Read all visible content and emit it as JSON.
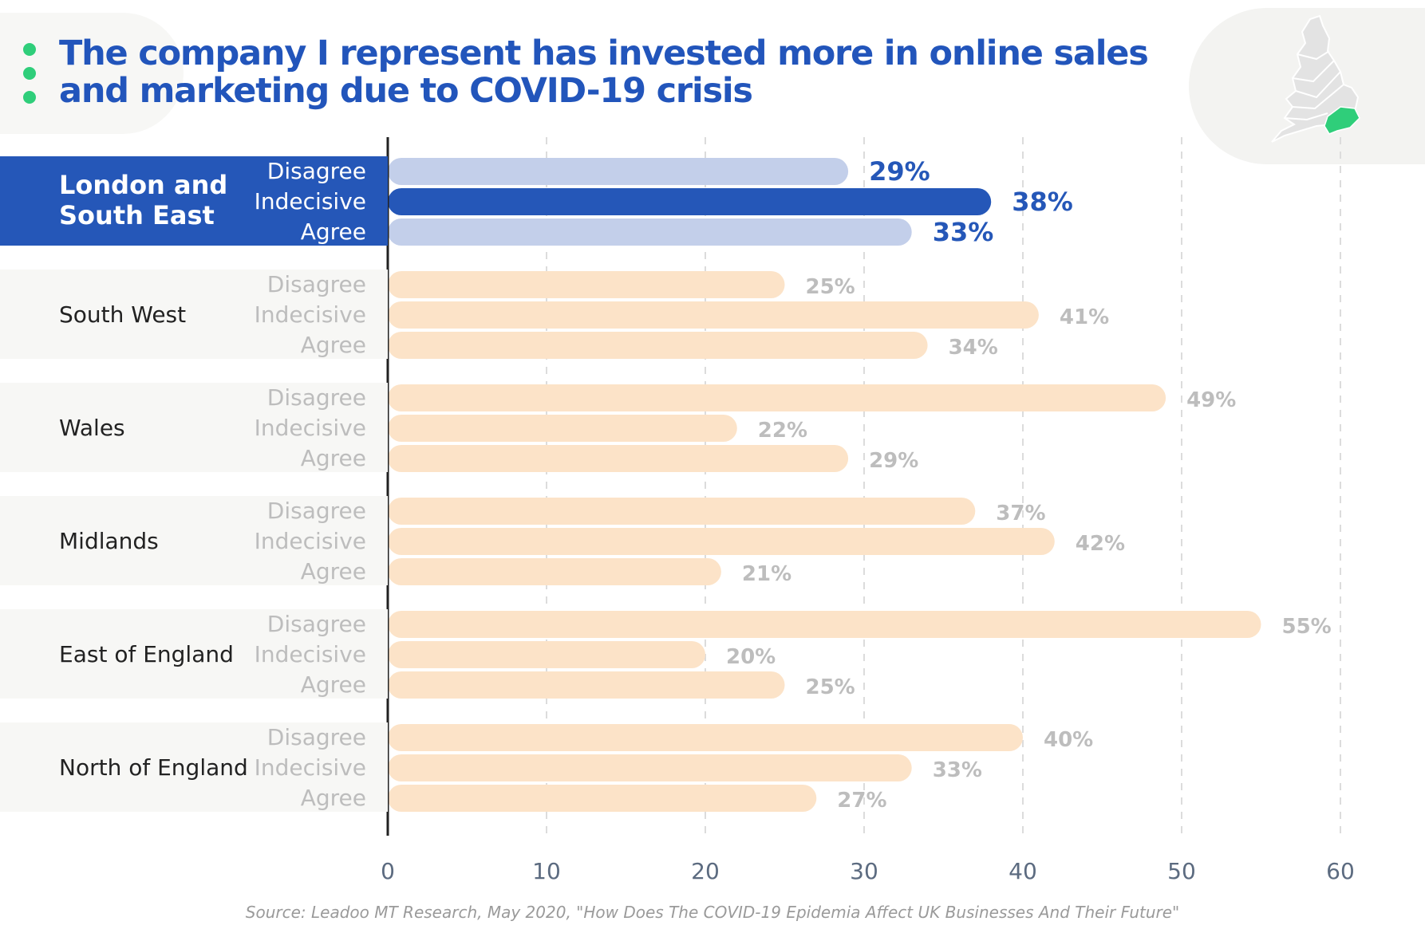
{
  "title": {
    "line1": "The company I represent has invested more in online sales",
    "line2": "and marketing due to COVID-19 crisis"
  },
  "source": "Source: Leadoo MT Research, May 2020, \"How Does The COVID-19 Epidemia Affect UK Businesses And Their Future\"",
  "colors": {
    "title": "#2255bb",
    "accent": "#2557b8",
    "accent_light": "#c3cfea",
    "bar": "#fce3c8",
    "value_gray": "#bdbdbd",
    "dot_green": "#2fce7a",
    "map_gray": "#e3e3e3",
    "map_highlight": "#2fce7a"
  },
  "icons": {
    "map": "england-wales-map-icon",
    "bullets": "green-dot-icon"
  },
  "chart_data": {
    "type": "bar",
    "orientation": "horizontal",
    "categories": [
      "Disagree",
      "Indecisive",
      "Agree"
    ],
    "groups": [
      {
        "region": "London and South East",
        "highlighted": true,
        "values": [
          29,
          38,
          33
        ],
        "labels": [
          "29%",
          "38%",
          "33%"
        ]
      },
      {
        "region": "South West",
        "highlighted": false,
        "values": [
          25,
          41,
          34
        ],
        "labels": [
          "25%",
          "41%",
          "34%"
        ]
      },
      {
        "region": "Wales",
        "highlighted": false,
        "values": [
          49,
          22,
          29
        ],
        "labels": [
          "49%",
          "22%",
          "29%"
        ]
      },
      {
        "region": "Midlands",
        "highlighted": false,
        "values": [
          37,
          42,
          21
        ],
        "labels": [
          "37%",
          "42%",
          "21%"
        ]
      },
      {
        "region": "East of England",
        "highlighted": false,
        "values": [
          55,
          20,
          25
        ],
        "labels": [
          "55%",
          "20%",
          "25%"
        ]
      },
      {
        "region": "North of England",
        "highlighted": false,
        "values": [
          40,
          33,
          27
        ],
        "labels": [
          "40%",
          "33%",
          "27%"
        ]
      }
    ],
    "xlim": [
      0,
      60
    ],
    "xticks": [
      0,
      10,
      20,
      30,
      40,
      50,
      60
    ],
    "grid": true
  }
}
